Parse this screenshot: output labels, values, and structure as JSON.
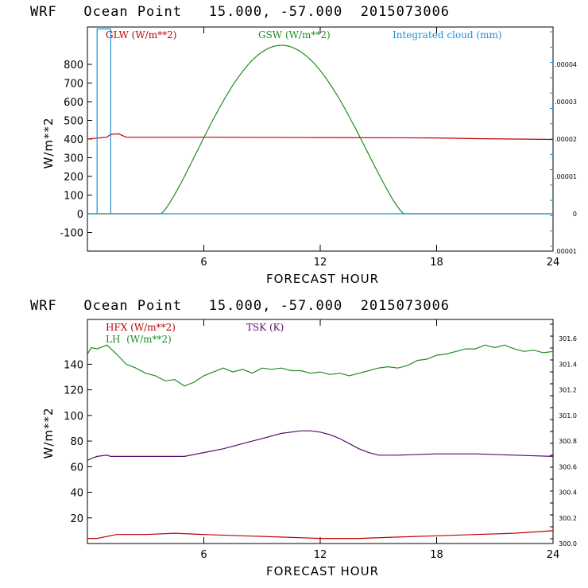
{
  "colors": {
    "glw": "#c00000",
    "gsw": "#228b22",
    "cloud": "#1e8fd6",
    "hfx": "#c00000",
    "lh": "#228b22",
    "tsk": "#5a0a6e"
  },
  "chart_data": [
    {
      "type": "line",
      "title": "WRF   Ocean Point   15.000, -57.000  2015073006",
      "xlabel": "FORECAST HOUR",
      "ylabel": "W/m**2",
      "xlim": [
        0,
        24
      ],
      "ylim": [
        -200,
        1000
      ],
      "x_ticks": [
        6,
        12,
        18,
        24
      ],
      "y_ticks": [
        -100,
        0,
        100,
        200,
        300,
        400,
        500,
        600,
        700,
        800
      ],
      "y2_label_values": [
        -1e-05,
        0,
        1e-05,
        2e-05,
        3e-05,
        4e-05
      ],
      "y2_labels": [
        ".00001",
        "0",
        ".00001",
        ".00002",
        ".00003",
        ".00004"
      ],
      "y2lim": [
        -1e-05,
        5e-05
      ],
      "series": [
        {
          "name": "GLW (W/m**2)",
          "color_key": "glw",
          "axis": "left",
          "x": [
            0,
            0.5,
            1.0,
            1.2,
            1.6,
            2.0,
            6,
            12,
            18,
            20,
            24
          ],
          "y": [
            400,
            405,
            410,
            425,
            428,
            410,
            410,
            408,
            406,
            402,
            398
          ]
        },
        {
          "name": "GSW (W/m**2)",
          "color_key": "gsw",
          "axis": "left",
          "generator": "sine",
          "x_start": 3.8,
          "x_peak": 10.0,
          "x_end": 16.3,
          "peak": 902
        },
        {
          "name": "Integrated cloud (mm)",
          "color_key": "cloud",
          "axis": "right",
          "x": [
            0,
            0.5,
            0.5,
            1.2,
            1.2,
            24
          ],
          "y": [
            0,
            0,
            4.95e-05,
            4.95e-05,
            0,
            0
          ]
        }
      ]
    },
    {
      "type": "line",
      "title": "WRF   Ocean Point   15.000, -57.000  2015073006",
      "xlabel": "FORECAST HOUR",
      "ylabel": "W/m**2",
      "xlim": [
        0,
        24
      ],
      "ylim": [
        0,
        175
      ],
      "x_ticks": [
        6,
        12,
        18,
        24
      ],
      "y_ticks": [
        20,
        40,
        60,
        80,
        100,
        120,
        140
      ],
      "y2_label_values": [
        300.0,
        300.2,
        300.4,
        300.6,
        300.8,
        301.0,
        301.2,
        301.4,
        301.6
      ],
      "y2_labels": [
        "300.0",
        "300.2",
        "300.4",
        "300.6",
        "300.8",
        "301.0",
        "301.2",
        "301.4",
        "301.6"
      ],
      "y2lim": [
        300.0,
        301.75
      ],
      "series": [
        {
          "name": "HFX (W/m**2)",
          "color_key": "hfx",
          "axis": "left",
          "x": [
            0,
            0.5,
            1.5,
            3,
            4.5,
            6,
            8,
            10,
            12,
            14,
            16,
            18,
            20,
            22,
            24
          ],
          "y": [
            4,
            4,
            7,
            7,
            8,
            7,
            6,
            5,
            4,
            4,
            5,
            6,
            7,
            8,
            10
          ]
        },
        {
          "name": "LH  (W/m**2)",
          "color_key": "lh",
          "axis": "left",
          "x": [
            0,
            0.2,
            0.5,
            1.0,
            1.5,
            2.0,
            2.5,
            3.0,
            3.5,
            4.0,
            4.5,
            5.0,
            5.5,
            6.0,
            6.5,
            7.0,
            7.5,
            8.0,
            8.5,
            9.0,
            9.5,
            10.0,
            10.5,
            11.0,
            11.5,
            12.0,
            12.5,
            13.0,
            13.5,
            14.0,
            14.5,
            15.0,
            15.5,
            16.0,
            16.5,
            17.0,
            17.5,
            18.0,
            18.5,
            19.0,
            19.5,
            20.0,
            20.5,
            21.0,
            21.5,
            22.0,
            22.5,
            23.0,
            23.5,
            24.0
          ],
          "y": [
            148,
            153,
            152,
            155,
            148,
            140,
            137,
            133,
            131,
            127,
            128,
            123,
            126,
            131,
            134,
            137,
            134,
            136,
            133,
            137,
            136,
            137,
            135,
            135,
            133,
            134,
            132,
            133,
            131,
            133,
            135,
            137,
            138,
            137,
            139,
            143,
            144,
            147,
            148,
            150,
            152,
            152,
            155,
            153,
            155,
            152,
            150,
            151,
            149,
            150
          ]
        },
        {
          "name": "TSK (K)",
          "color_key": "tsk",
          "axis": "left",
          "x": [
            0,
            0.3,
            0.5,
            1.0,
            1.2,
            1.5,
            2.0,
            3.0,
            4.0,
            5.0,
            6.0,
            7.0,
            8.0,
            9.0,
            10.0,
            10.5,
            11.0,
            11.5,
            12.0,
            12.5,
            13.0,
            13.5,
            14.0,
            14.5,
            15.0,
            16.0,
            18.0,
            20.0,
            22.0,
            24.0
          ],
          "y": [
            65,
            67,
            68,
            69,
            68,
            68,
            68,
            68,
            68,
            68,
            71,
            74,
            78,
            82,
            86,
            87,
            88,
            88,
            87,
            85,
            82,
            78,
            74,
            71,
            69,
            69,
            70,
            70,
            69,
            68
          ]
        }
      ]
    }
  ]
}
